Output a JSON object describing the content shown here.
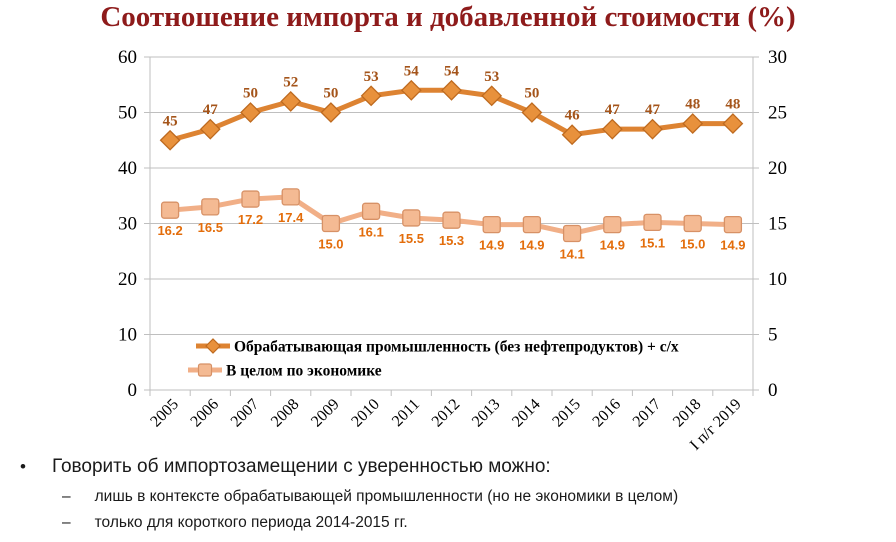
{
  "title": "Соотношение импорта и добавленной стоимости (%)",
  "chart_data": {
    "type": "line",
    "categories": [
      "2005",
      "2006",
      "2007",
      "2008",
      "2009",
      "2010",
      "2011",
      "2012",
      "2013",
      "2014",
      "2015",
      "2016",
      "2017",
      "2018",
      "I п/г 2019"
    ],
    "series": [
      {
        "name": "Обрабатывающая промышленность (без нефтепродуктов) + с/х",
        "axis": "left",
        "marker": "diamond",
        "values": [
          45,
          47,
          50,
          52,
          50,
          53,
          54,
          54,
          53,
          50,
          46,
          47,
          47,
          48,
          48
        ],
        "labels": [
          "45",
          "47",
          "50",
          "52",
          "50",
          "53",
          "54",
          "54",
          "53",
          "50",
          "46",
          "47",
          "47",
          "48",
          "48"
        ],
        "line_color": "#DD8332",
        "marker_fill": "#E8913C",
        "marker_stroke": "#BE6A1F",
        "label_color": "#A4541A",
        "label_position": "above"
      },
      {
        "name": "В целом по экономике",
        "axis": "right",
        "marker": "square",
        "values": [
          16.2,
          16.5,
          17.2,
          17.4,
          15.0,
          16.1,
          15.5,
          15.3,
          14.9,
          14.9,
          14.1,
          14.9,
          15.1,
          15.0,
          14.9
        ],
        "labels": [
          "16.2",
          "16.5",
          "17.2",
          "17.4",
          "15.0",
          "16.1",
          "15.5",
          "15.3",
          "14.9",
          "14.9",
          "14.1",
          "14.9",
          "15.1",
          "15.0",
          "14.9"
        ],
        "line_color": "#F1AF87",
        "marker_fill": "#F4BA93",
        "marker_stroke": "#D79166",
        "label_color": "#E36D0B",
        "label_position": "below"
      }
    ],
    "left_axis": {
      "min": 0,
      "max": 60,
      "step": 10,
      "ticks": [
        0,
        10,
        20,
        30,
        40,
        50,
        60
      ]
    },
    "right_axis": {
      "min": 0,
      "max": 30,
      "step": 5,
      "ticks": [
        0,
        5,
        10,
        15,
        20,
        25,
        30
      ]
    },
    "grid": true,
    "legend_position": "inside-bottom-left"
  },
  "notes": {
    "bullet": "•",
    "dash": "–",
    "line1": "Говорить об импортозамещении с уверенностью можно:",
    "line2": "лишь в контексте обрабатывающей промышленности (но не экономики в целом)",
    "line3": "только для короткого периода 2014-2015 гг."
  },
  "colors": {
    "title": "#8E1B1B",
    "grid": "#BFBFBF",
    "axis_text": "#000000"
  }
}
